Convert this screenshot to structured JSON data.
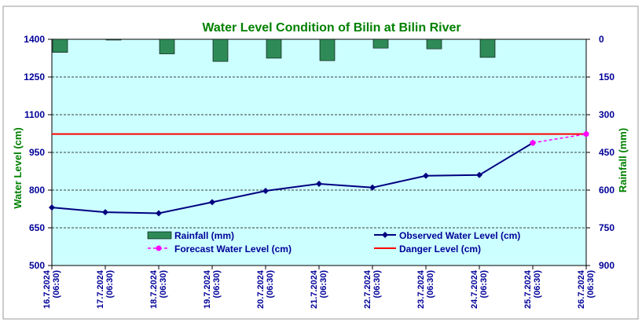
{
  "chart_data": {
    "type": "line",
    "title": "Water Level Condition of Bilin at Bilin River",
    "ylabel_left": "Water Level (cm)",
    "ylabel_right": "Rainfall (mm)",
    "ylim_left": [
      500,
      1400
    ],
    "yticks_left": [
      500,
      650,
      800,
      950,
      1100,
      1250,
      1400
    ],
    "ylim_right_inverted": [
      0,
      900
    ],
    "yticks_right": [
      0,
      150,
      300,
      450,
      600,
      750,
      900
    ],
    "categories": [
      [
        "16.7.2024",
        "(06:30)"
      ],
      [
        "17.7.2024",
        "(06:30)"
      ],
      [
        "18.7.2024",
        "(06:30)"
      ],
      [
        "19.7.2024",
        "(06:30)"
      ],
      [
        "20.7.2024",
        "(06:30)"
      ],
      [
        "21.7.2024",
        "(06:30)"
      ],
      [
        "22.7.2024",
        "(06:30)"
      ],
      [
        "23.7.2024",
        "(06:30)"
      ],
      [
        "24.7.2024",
        "(06:30)"
      ],
      [
        "25.7.2024",
        "(06:30)"
      ],
      [
        "26.7.2024",
        "(06:30)"
      ]
    ],
    "series": [
      {
        "name": "Rainfall (mm)",
        "type": "bar",
        "axis": "right",
        "color": "#2e8b57",
        "values": [
          52,
          2,
          58,
          88,
          75,
          85,
          35,
          38,
          72,
          null,
          null
        ]
      },
      {
        "name": "Observed Water Level (cm)",
        "type": "line",
        "axis": "left",
        "color": "#000080",
        "values": [
          731,
          712,
          708,
          752,
          797,
          825,
          810,
          857,
          860,
          988,
          null
        ]
      },
      {
        "name": "Forecast Water Level (cm)",
        "type": "line-dashed",
        "axis": "left",
        "color": "#ff00ff",
        "values": [
          null,
          null,
          null,
          null,
          null,
          null,
          null,
          null,
          null,
          988,
          1023
        ]
      },
      {
        "name": "Danger Level (cm)",
        "type": "hline",
        "axis": "left",
        "color": "#ff0000",
        "value": 1023
      }
    ],
    "legend": [
      "Rainfall (mm)",
      "Observed Water Level (cm)",
      "Forecast Water Level (cm)",
      "Danger Level (cm)"
    ],
    "grid": true,
    "plot_background": "#ccffff",
    "title_color": "#008000",
    "axis_text_color": "#000099",
    "axis_title_color": "#008000"
  }
}
